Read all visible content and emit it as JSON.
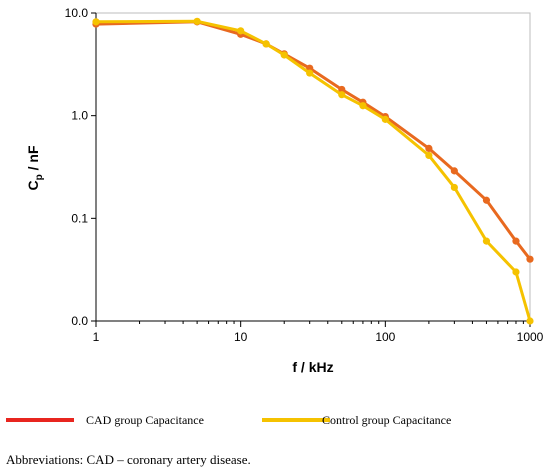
{
  "chart_data": {
    "type": "line",
    "x_scale": "log",
    "y_scale": "log",
    "xlim": [
      1,
      1000
    ],
    "ylim_labels": [
      "0.0",
      "0.1",
      "1.0",
      "10.0"
    ],
    "ylabel": "Cp / nF",
    "ylabel_main": "C",
    "ylabel_sub": "p",
    "ylabel_rest": " / nF",
    "xlabel": "f / kHz",
    "x_ticks": [
      {
        "value": 1,
        "label": "1"
      },
      {
        "value": 10,
        "label": "10"
      },
      {
        "value": 100,
        "label": "100"
      },
      {
        "value": 1000,
        "label": "1000"
      }
    ],
    "y_ticks": [
      {
        "value": 0.01,
        "label": "0.0"
      },
      {
        "value": 0.1,
        "label": "0.1"
      },
      {
        "value": 1,
        "label": "1.0"
      },
      {
        "value": 10,
        "label": "10.0"
      }
    ],
    "series": [
      {
        "name": "CAD group Capacitance",
        "color": "#e8691f",
        "legend_color": "#e8251f",
        "points": [
          [
            1,
            7.8
          ],
          [
            5,
            8.2
          ],
          [
            10,
            6.2
          ],
          [
            15,
            5.0
          ],
          [
            20,
            4.0
          ],
          [
            30,
            2.9
          ],
          [
            50,
            1.8
          ],
          [
            70,
            1.35
          ],
          [
            100,
            0.98
          ],
          [
            200,
            0.48
          ],
          [
            300,
            0.29
          ],
          [
            500,
            0.15
          ],
          [
            800,
            0.06
          ],
          [
            1000,
            0.04
          ]
        ]
      },
      {
        "name": "Control group Capacitance",
        "color": "#f5c200",
        "legend_color": "#f5c200",
        "points": [
          [
            1,
            8.2
          ],
          [
            5,
            8.3
          ],
          [
            10,
            6.7
          ],
          [
            15,
            5.0
          ],
          [
            20,
            3.9
          ],
          [
            30,
            2.6
          ],
          [
            50,
            1.6
          ],
          [
            70,
            1.25
          ],
          [
            100,
            0.92
          ],
          [
            200,
            0.41
          ],
          [
            300,
            0.2
          ],
          [
            500,
            0.06
          ],
          [
            800,
            0.03
          ],
          [
            1000,
            0.01
          ]
        ]
      }
    ],
    "legend_position": "bottom",
    "grid": false
  },
  "caption": "Abbreviations: CAD – coronary artery disease."
}
